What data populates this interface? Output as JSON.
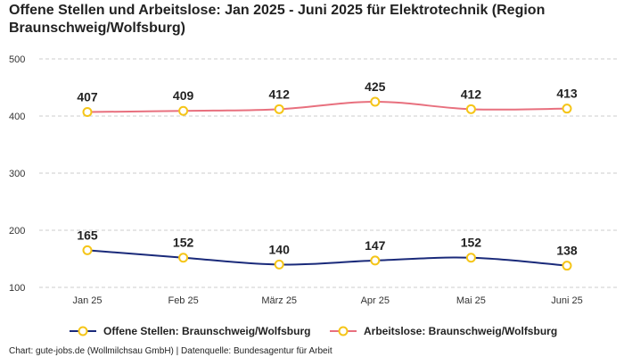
{
  "chart_data": {
    "type": "line",
    "title": "Offene Stellen und Arbeitslose: Jan 2025 - Juni 2025 für Elektrotechnik (Region Braunschweig/Wolfsburg)",
    "categories": [
      "Jan 25",
      "Feb 25",
      "März 25",
      "Apr 25",
      "Mai 25",
      "Juni 25"
    ],
    "yticks": [
      "100",
      "200",
      "300",
      "400",
      "500"
    ],
    "ylim": [
      100,
      500
    ],
    "grid": true,
    "legend_position": "bottom",
    "series": [
      {
        "name": "Offene Stellen: Braunschweig/Wolfsburg",
        "values": [
          165,
          152,
          140,
          147,
          152,
          138
        ],
        "labels": [
          "165",
          "152",
          "140",
          "147",
          "152",
          "138"
        ],
        "color": "#1a2a7a"
      },
      {
        "name": "Arbeitslose: Braunschweig/Wolfsburg",
        "values": [
          407,
          409,
          412,
          425,
          412,
          413
        ],
        "labels": [
          "407",
          "409",
          "412",
          "425",
          "412",
          "413"
        ],
        "color": "#e8707e"
      }
    ],
    "marker_color": "#f5c518"
  },
  "footer": "Chart: gute-jobs.de (Wollmilchsau GmbH) | Datenquelle: Bundesagentur für Arbeit"
}
